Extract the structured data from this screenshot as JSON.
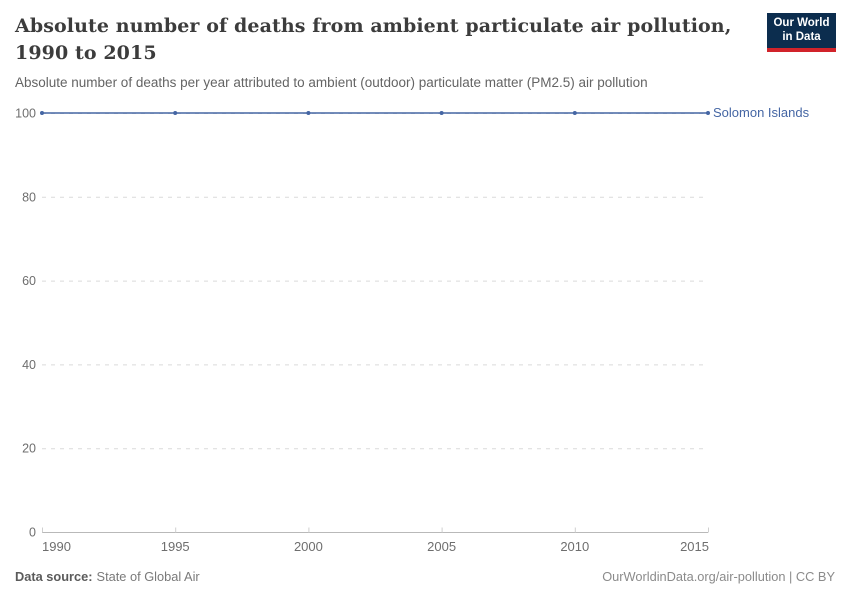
{
  "header": {
    "title": "Absolute number of deaths from ambient particulate air pollution, 1990 to 2015",
    "subtitle": "Absolute number of deaths per year attributed to ambient (outdoor) particulate matter (PM2.5) air pollution",
    "logo": {
      "line1": "Our World",
      "line2": "in Data",
      "bg": "#0c2d4e",
      "accent": "#d1232a"
    }
  },
  "chart_data": {
    "type": "line",
    "title": "Absolute number of deaths from ambient particulate air pollution, 1990 to 2015",
    "subtitle": "Absolute number of deaths per year attributed to ambient (outdoor) particulate matter (PM2.5) air pollution",
    "x": [
      1990,
      1995,
      2000,
      2005,
      2010,
      2015
    ],
    "series": [
      {
        "name": "Solomon Islands",
        "color": "#4566a4",
        "values": [
          100,
          100,
          100,
          100,
          100,
          100
        ]
      }
    ],
    "xlim": [
      1990,
      2015
    ],
    "ylim": [
      0,
      100
    ],
    "x_ticks": [
      1990,
      1995,
      2000,
      2005,
      2010,
      2015
    ],
    "y_ticks": [
      0,
      20,
      40,
      60,
      80,
      100
    ],
    "grid": "horizontal-dashed",
    "legend_position": "right-of-line",
    "xlabel": "",
    "ylabel": ""
  },
  "footer": {
    "datasource_label": "Data source:",
    "datasource_value": "State of Global Air",
    "attribution": "OurWorldinData.org/air-pollution | CC BY"
  },
  "colors": {
    "series": "#4566a4",
    "grid": "#dadada",
    "axis": "#b9b9b9",
    "axis_tick": "#cfcfcf",
    "tick_label": "#6e6e6e"
  }
}
